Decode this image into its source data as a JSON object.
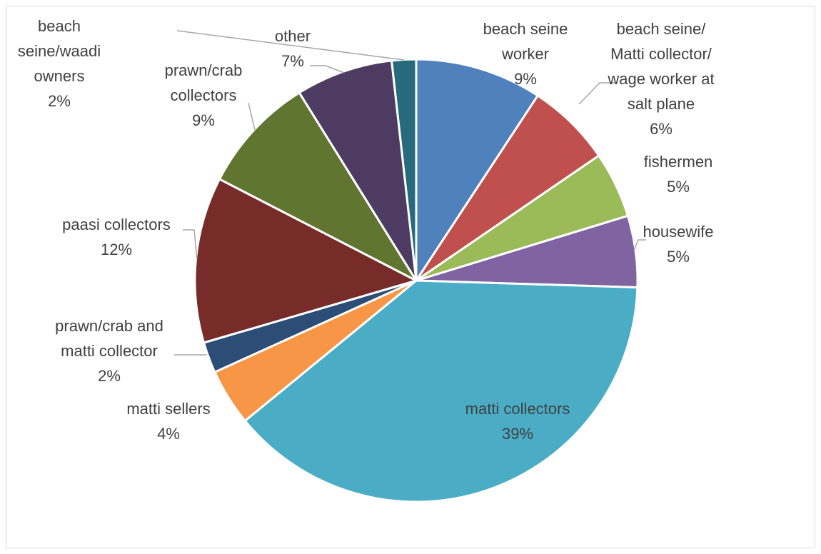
{
  "chart_data": {
    "type": "pie",
    "title": "",
    "start_angle_deg": 0,
    "direction": "clockwise",
    "legend": "none",
    "slices": [
      {
        "label": [
          "beach seine",
          "worker"
        ],
        "pct_text": "9%",
        "value": 9.4,
        "color": "#4F81BD"
      },
      {
        "label": [
          "beach seine/",
          "Matti collector/",
          "wage worker at",
          "salt plane"
        ],
        "pct_text": "6%",
        "value": 6.3,
        "color": "#C0504D"
      },
      {
        "label": [
          "fishermen"
        ],
        "pct_text": "5%",
        "value": 4.9,
        "color": "#9BBB59"
      },
      {
        "label": [
          "housewife"
        ],
        "pct_text": "5%",
        "value": 5.3,
        "color": "#8064A2"
      },
      {
        "label": [
          "matti collectors"
        ],
        "pct_text": "39%",
        "value": 39.2,
        "color": "#4BACC6"
      },
      {
        "label": [
          "matti sellers"
        ],
        "pct_text": "4%",
        "value": 4.2,
        "color": "#F79646"
      },
      {
        "label": [
          "prawn/crab and",
          "matti collector"
        ],
        "pct_text": "2%",
        "value": 2.3,
        "color": "#2C4D75"
      },
      {
        "label": [
          "paasi collectors"
        ],
        "pct_text": "12%",
        "value": 12.3,
        "color": "#772C2A"
      },
      {
        "label": [
          "prawn/crab",
          "collectors"
        ],
        "pct_text": "9%",
        "value": 8.7,
        "color": "#5F7530"
      },
      {
        "label": [
          "other"
        ],
        "pct_text": "7%",
        "value": 7.2,
        "color": "#4D3B62"
      },
      {
        "label": [
          "beach",
          "seine/waadi",
          "owners"
        ],
        "pct_text": "2%",
        "value": 1.8,
        "color": "#276A7C"
      }
    ]
  }
}
